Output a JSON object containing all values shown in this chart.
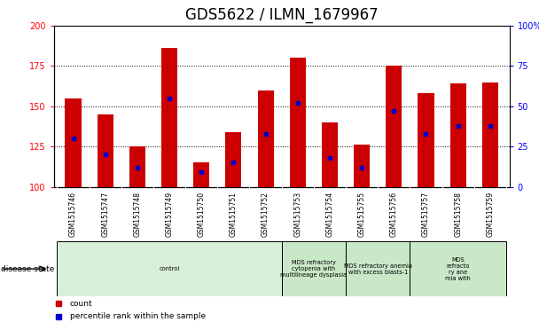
{
  "title": "GDS5622 / ILMN_1679967",
  "samples": [
    "GSM1515746",
    "GSM1515747",
    "GSM1515748",
    "GSM1515749",
    "GSM1515750",
    "GSM1515751",
    "GSM1515752",
    "GSM1515753",
    "GSM1515754",
    "GSM1515755",
    "GSM1515756",
    "GSM1515757",
    "GSM1515758",
    "GSM1515759"
  ],
  "count_values": [
    155,
    145,
    125,
    186,
    115,
    134,
    160,
    180,
    140,
    126,
    175,
    158,
    164,
    165
  ],
  "percentile_values": [
    30,
    20,
    12,
    55,
    9,
    15,
    33,
    52,
    18,
    12,
    47,
    33,
    38,
    38
  ],
  "ylim_left": [
    100,
    200
  ],
  "ylim_right": [
    0,
    100
  ],
  "yticks_left": [
    100,
    125,
    150,
    175,
    200
  ],
  "yticks_right": [
    0,
    25,
    50,
    75,
    100
  ],
  "bar_color": "#cc0000",
  "percentile_color": "#0000cc",
  "grid_color": "#000000",
  "disease_groups": [
    {
      "label": "control",
      "start": 0,
      "end": 7,
      "color": "#d8efd8"
    },
    {
      "label": "MDS refractory\ncytopenia with\nmultilineage dysplasia",
      "start": 7,
      "end": 9,
      "color": "#c8e8c8"
    },
    {
      "label": "MDS refractory anemia\nwith excess blasts-1",
      "start": 9,
      "end": 11,
      "color": "#c8e8c8"
    },
    {
      "label": "MDS\nrefracto\nry ane\nmia with",
      "start": 11,
      "end": 14,
      "color": "#c8e8c8"
    }
  ],
  "disease_state_label": "disease state",
  "legend_count_label": "count",
  "legend_pct_label": "percentile rank within the sample",
  "title_fontsize": 12,
  "tick_fontsize": 7,
  "sample_fontsize": 5.5
}
